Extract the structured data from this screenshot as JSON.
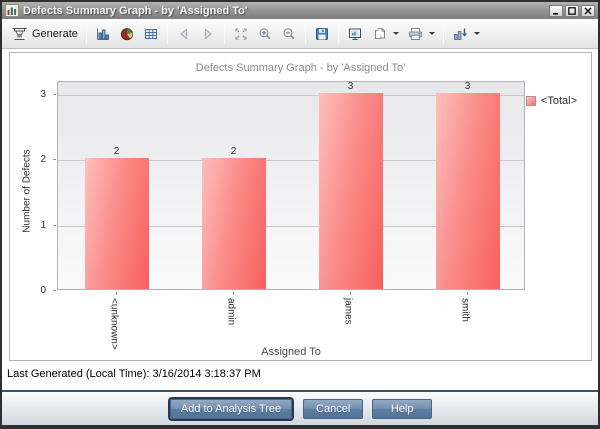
{
  "window": {
    "title": "Defects Summary Graph - by 'Assigned To'",
    "controls": [
      "minimize-icon",
      "maximize-icon",
      "close-icon"
    ]
  },
  "toolbar": {
    "generate_label": "Generate",
    "icons": [
      "generate-icon",
      "bar-chart-view-icon",
      "pie-chart-view-icon",
      "grid-view-icon",
      "back-icon",
      "forward-icon",
      "fullscreen-icon",
      "zoom-in-icon",
      "zoom-out-icon",
      "save-icon",
      "screen-preview-icon",
      "copy-graph-icon",
      "print-icon",
      "filter-icon"
    ]
  },
  "chart_data": {
    "type": "bar",
    "title": "Defects Summary Graph - by 'Assigned To'",
    "categories": [
      "<unknown>",
      "admin",
      "james",
      "smith"
    ],
    "values": [
      2,
      2,
      3,
      3
    ],
    "data_labels_shown": true,
    "xlabel": "Assigned To",
    "ylabel": "Number of Defects",
    "yticks": [
      0,
      1,
      2,
      3
    ],
    "ylim": [
      0,
      3.2
    ],
    "grid": true,
    "legend": [
      "<Total>"
    ],
    "legend_position": "right",
    "bar_color": "#f85f5f",
    "bar_color_light": "#fdc0bc"
  },
  "status": {
    "last_generated": "Last Generated (Local Time): 3/16/2014 3:18:37 PM"
  },
  "footer": {
    "buttons": [
      {
        "label": "Add to Analysis Tree"
      },
      {
        "label": "Cancel"
      },
      {
        "label": "Help"
      }
    ]
  },
  "colors": {
    "button_blue": "#53759a",
    "footer_separator": "#3e5166",
    "titlebar_gray": "#989898",
    "plot_bg": "#ededef"
  }
}
